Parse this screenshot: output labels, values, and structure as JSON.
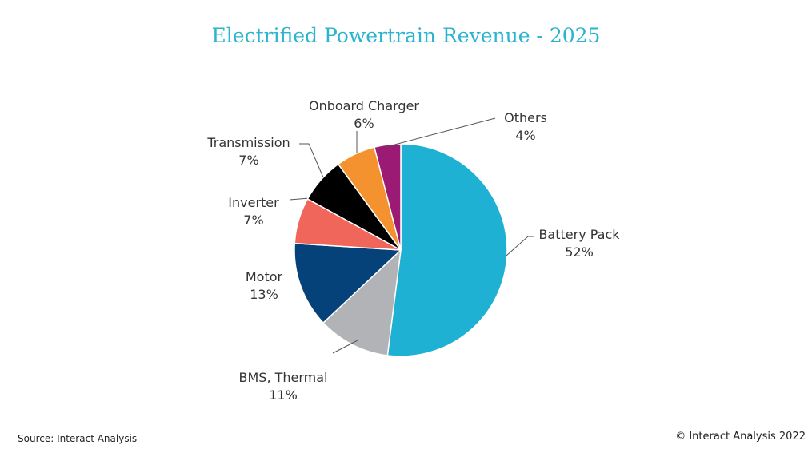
{
  "chart_data": {
    "type": "pie",
    "title": "Electrified Powertrain Revenue - 2025",
    "start": "12 o'clock, clockwise",
    "slices": [
      {
        "label": "Battery Pack",
        "value": 52,
        "display": "52%",
        "color": "#1EB1D3"
      },
      {
        "label": "BMS, Thermal",
        "value": 11,
        "display": "11%",
        "color": "#B1B3B6"
      },
      {
        "label": "Motor",
        "value": 13,
        "display": "13%",
        "color": "#06427A"
      },
      {
        "label": "Inverter",
        "value": 7,
        "display": "7%",
        "color": "#F0665A"
      },
      {
        "label": "Transmission",
        "value": 7,
        "display": "7%",
        "color": "#000000"
      },
      {
        "label": "Onboard Charger",
        "value": 6,
        "display": "6%",
        "color": "#F4922F"
      },
      {
        "label": "Others",
        "value": 4,
        "display": "4%",
        "color": "#9B1B74"
      }
    ]
  },
  "footer": {
    "source": "Source: Interact Analysis",
    "copyright": "© Interact Analysis 2022"
  }
}
